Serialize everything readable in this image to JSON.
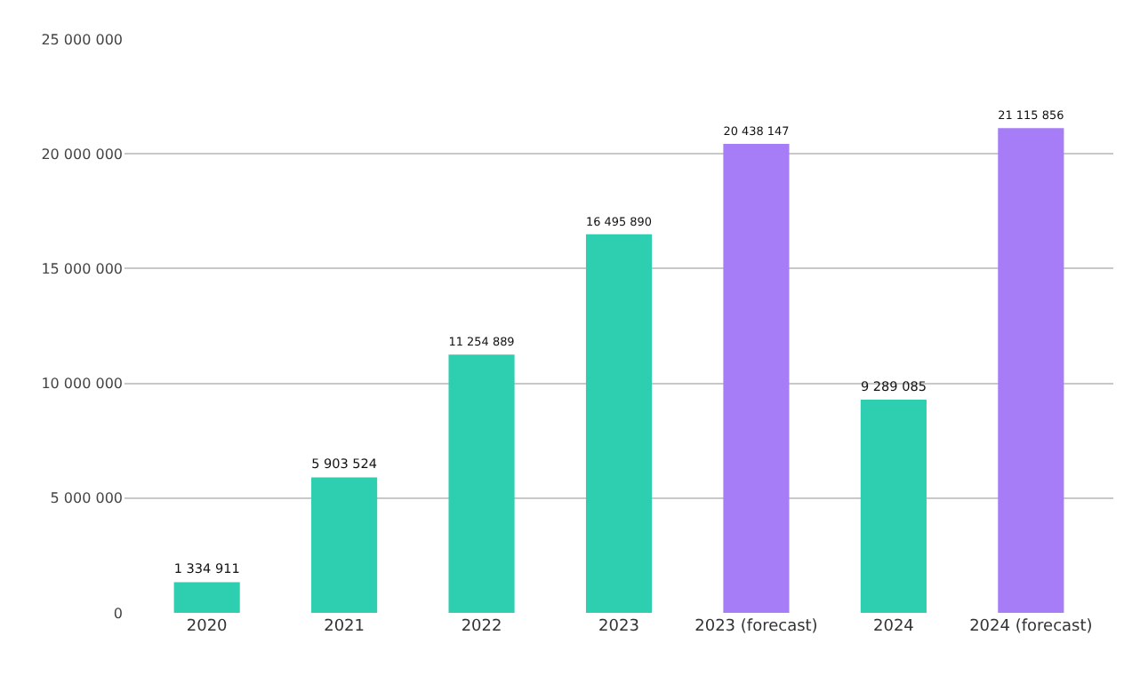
{
  "chart_data": {
    "type": "bar",
    "categories": [
      "2020",
      "2021",
      "2022",
      "2023",
      "2023 (forecast)",
      "2024",
      "2024 (forecast)"
    ],
    "values": [
      1334911,
      5903524,
      11254889,
      16495890,
      20438147,
      9289085,
      21115856
    ],
    "colors": [
      "#2ecfb1",
      "#2ecfb1",
      "#2ecfb1",
      "#2ecfb1",
      "#a67cf7",
      "#2ecfb1",
      "#a67cf7"
    ],
    "value_labels": [
      "1 334 911",
      "5 903 524",
      "11 254 889",
      "16 495 890",
      "20 438 147",
      "9 289 085",
      "21 115 856"
    ],
    "ylim": [
      0,
      25000000
    ],
    "yticks": [
      {
        "value": 0,
        "label": "0"
      },
      {
        "value": 5000000,
        "label": "5 000 000"
      },
      {
        "value": 10000000,
        "label": "10 000 000"
      },
      {
        "value": 15000000,
        "label": "15 000 000"
      },
      {
        "value": 20000000,
        "label": "20 000 000"
      },
      {
        "value": 25000000,
        "label": "25 000 000"
      }
    ],
    "grid": "y"
  }
}
